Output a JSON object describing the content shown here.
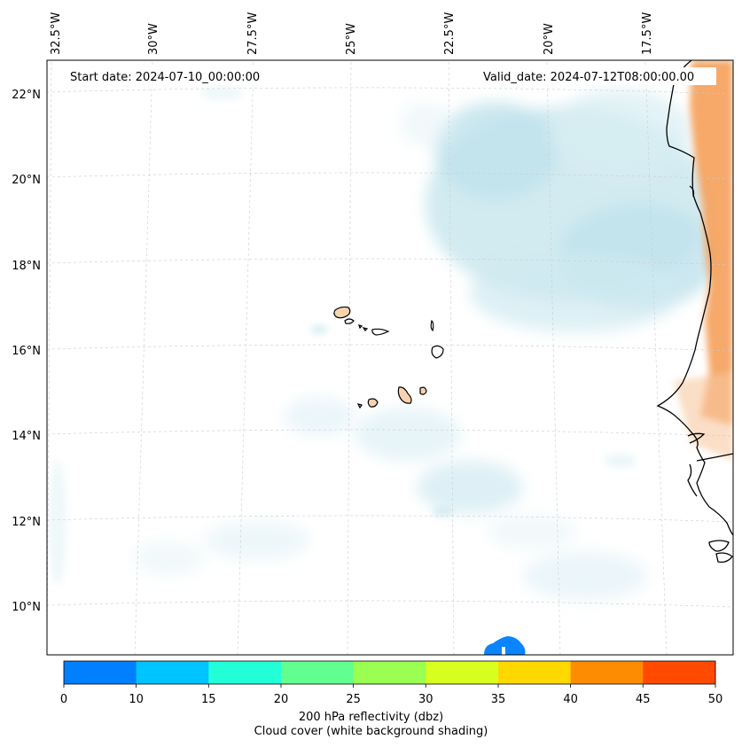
{
  "map": {
    "start_date": "Start date: 2024-07-10_00:00:00",
    "valid_date": "Valid_date: 2024-07-12T08:00:00.00",
    "lon_labels": [
      "32.5°W",
      "30°W",
      "27.5°W",
      "25°W",
      "22.5°W",
      "20°W",
      "17.5°W"
    ],
    "lat_labels": [
      "22°N",
      "20°N",
      "18°N",
      "16°N",
      "14°N",
      "12°N",
      "10°N"
    ],
    "colors": {
      "coast": "#000000",
      "land_warm": "#f5a05a",
      "island_fill": "#f7d3b0",
      "cloud": "#9fd3e0",
      "low_reflectivity": "#0a84ff"
    }
  },
  "colorbar": {
    "ticks": [
      "0",
      "10",
      "15",
      "20",
      "25",
      "30",
      "35",
      "40",
      "45",
      "50"
    ],
    "colors": [
      "#0080ff",
      "#00c4ff",
      "#22ffd8",
      "#60ff90",
      "#9aff50",
      "#d8ff20",
      "#ffd800",
      "#ff8c00",
      "#ff4a00"
    ],
    "title": "200 hPa reflectivity (dbz)",
    "subtitle": "Cloud cover (white background shading)"
  }
}
